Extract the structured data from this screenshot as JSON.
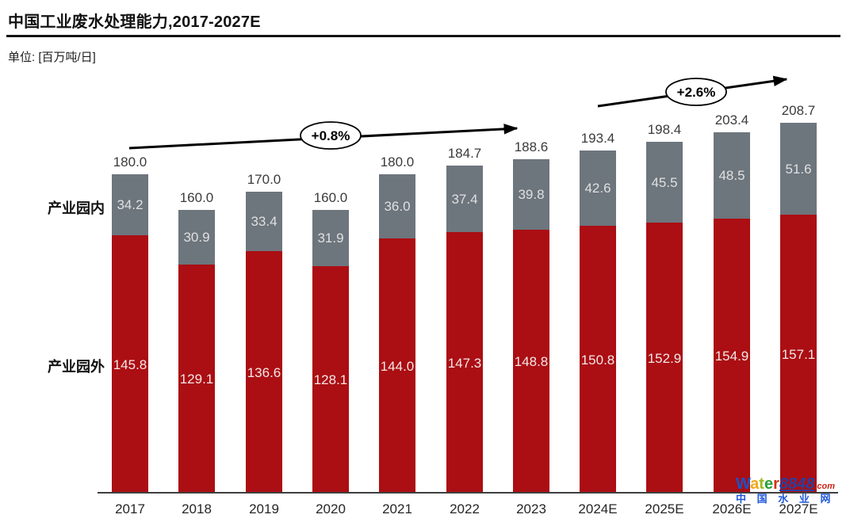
{
  "page": {
    "title": "中国工业废水处理能力,2017-2027E",
    "unit_label": "单位: [百万吨/日]"
  },
  "legend": {
    "inside_label": "产业园内",
    "outside_label": "产业园外"
  },
  "annotations": {
    "cagr_1": "+0.8%",
    "cagr_2": "+2.6%"
  },
  "watermark": {
    "brand_word": "Water",
    "brand_number": "8848",
    "brand_tld": ".com",
    "subtitle": "中 国 水 业 网"
  },
  "colors": {
    "series_inside": "#6d757d",
    "series_outside": "#ab0e13",
    "axis": "#3f3f3f"
  },
  "chart_data": {
    "type": "bar",
    "stacked": true,
    "title": "中国工业废水处理能力,2017-2027E",
    "ylabel": "百万吨/日",
    "grid": false,
    "legend_position": "left",
    "ylim": [
      0,
      230
    ],
    "categories": [
      "2017",
      "2018",
      "2019",
      "2020",
      "2021",
      "2022",
      "2023",
      "2024E",
      "2025E",
      "2026E",
      "2027E"
    ],
    "series": [
      {
        "name": "产业园外",
        "color": "#ab0e13",
        "values": [
          145.8,
          129.1,
          136.6,
          128.1,
          144.0,
          147.3,
          148.8,
          150.8,
          152.9,
          154.9,
          157.1
        ]
      },
      {
        "name": "产业园内",
        "color": "#6d757d",
        "values": [
          34.2,
          30.9,
          33.4,
          31.9,
          36.0,
          37.4,
          39.8,
          42.6,
          45.5,
          48.5,
          51.6
        ]
      }
    ],
    "totals": [
      180.0,
      160.0,
      170.0,
      160.0,
      180.0,
      184.7,
      188.6,
      193.4,
      198.4,
      203.4,
      208.7
    ],
    "growth_annotations": [
      "+0.8%",
      "+2.6%"
    ]
  }
}
